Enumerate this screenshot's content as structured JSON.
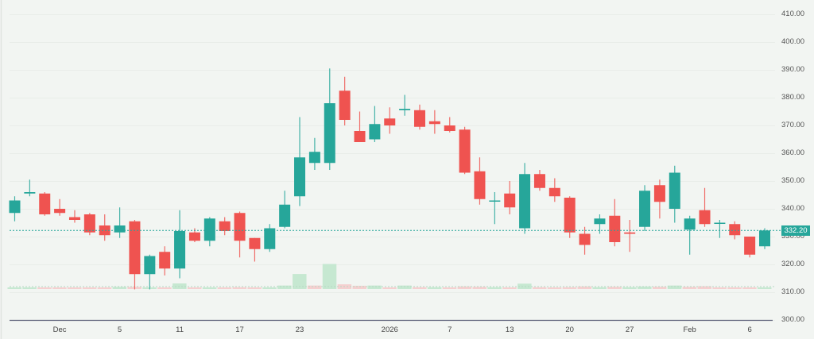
{
  "chart_data": {
    "type": "candlestick",
    "title": "",
    "xlabel": "",
    "ylabel": "",
    "ylim": [
      300,
      410
    ],
    "y_ticks": [
      410,
      400,
      390,
      380,
      370,
      360,
      350,
      340,
      330,
      320,
      310,
      300
    ],
    "x_ticks": [
      {
        "label": "Dec",
        "index": 3
      },
      {
        "label": "5",
        "index": 7
      },
      {
        "label": "11",
        "index": 11
      },
      {
        "label": "17",
        "index": 15
      },
      {
        "label": "23",
        "index": 19
      },
      {
        "label": "2026",
        "index": 25
      },
      {
        "label": "7",
        "index": 29
      },
      {
        "label": "13",
        "index": 33
      },
      {
        "label": "20",
        "index": 37
      },
      {
        "label": "27",
        "index": 41
      },
      {
        "label": "Feb",
        "index": 45
      },
      {
        "label": "6",
        "index": 49
      }
    ],
    "last_price": 332.2,
    "last_price_label": "332.20",
    "grid": true,
    "colors": {
      "up": "#26a69a",
      "down": "#ef5350",
      "vol_up": "#c6e8d1",
      "vol_down": "#f5d0d0",
      "background": "#f2f5f2"
    },
    "candles": [
      {
        "o": 338.5,
        "h": 344.5,
        "l": 335.5,
        "c": 343.0
      },
      {
        "o": 345.5,
        "h": 350.5,
        "l": 344.5,
        "c": 346.0
      },
      {
        "o": 345.5,
        "h": 346.0,
        "l": 337.5,
        "c": 338.0
      },
      {
        "o": 340.0,
        "h": 343.5,
        "l": 337.5,
        "c": 338.5
      },
      {
        "o": 337.0,
        "h": 339.5,
        "l": 335.0,
        "c": 336.0
      },
      {
        "o": 338.0,
        "h": 338.5,
        "l": 330.5,
        "c": 331.5
      },
      {
        "o": 334.0,
        "h": 338.0,
        "l": 328.5,
        "c": 330.5
      },
      {
        "o": 331.5,
        "h": 340.5,
        "l": 329.5,
        "c": 334.0
      },
      {
        "o": 335.5,
        "h": 336.0,
        "l": 311.0,
        "c": 316.5
      },
      {
        "o": 316.5,
        "h": 323.5,
        "l": 311.0,
        "c": 323.0
      },
      {
        "o": 324.5,
        "h": 326.5,
        "l": 316.0,
        "c": 318.5
      },
      {
        "o": 318.5,
        "h": 339.5,
        "l": 315.0,
        "c": 332.0
      },
      {
        "o": 331.5,
        "h": 333.0,
        "l": 328.0,
        "c": 328.5
      },
      {
        "o": 328.5,
        "h": 337.0,
        "l": 326.5,
        "c": 336.5
      },
      {
        "o": 335.5,
        "h": 337.0,
        "l": 330.5,
        "c": 332.0
      },
      {
        "o": 338.5,
        "h": 339.0,
        "l": 322.5,
        "c": 328.5
      },
      {
        "o": 329.5,
        "h": 329.5,
        "l": 321.0,
        "c": 325.5
      },
      {
        "o": 325.5,
        "h": 334.5,
        "l": 324.5,
        "c": 333.0
      },
      {
        "o": 333.5,
        "h": 346.5,
        "l": 333.0,
        "c": 341.5
      },
      {
        "o": 344.5,
        "h": 373.0,
        "l": 341.0,
        "c": 358.5
      },
      {
        "o": 356.5,
        "h": 365.5,
        "l": 354.0,
        "c": 360.5
      },
      {
        "o": 356.5,
        "h": 390.5,
        "l": 354.0,
        "c": 378.0
      },
      {
        "o": 382.5,
        "h": 387.5,
        "l": 370.0,
        "c": 372.0
      },
      {
        "o": 368.0,
        "h": 375.0,
        "l": 364.0,
        "c": 364.0
      },
      {
        "o": 365.0,
        "h": 377.0,
        "l": 364.0,
        "c": 370.5
      },
      {
        "o": 372.5,
        "h": 376.5,
        "l": 367.0,
        "c": 370.0
      },
      {
        "o": 375.5,
        "h": 381.0,
        "l": 373.5,
        "c": 376.0
      },
      {
        "o": 375.5,
        "h": 377.5,
        "l": 368.5,
        "c": 369.5
      },
      {
        "o": 371.5,
        "h": 375.5,
        "l": 367.0,
        "c": 370.5
      },
      {
        "o": 370.0,
        "h": 373.0,
        "l": 367.5,
        "c": 368.0
      },
      {
        "o": 368.5,
        "h": 369.5,
        "l": 352.5,
        "c": 353.0
      },
      {
        "o": 353.5,
        "h": 358.5,
        "l": 341.5,
        "c": 343.5
      },
      {
        "o": 343.0,
        "h": 346.0,
        "l": 334.5,
        "c": 343.0
      },
      {
        "o": 345.5,
        "h": 350.0,
        "l": 338.0,
        "c": 340.5
      },
      {
        "o": 333.0,
        "h": 356.5,
        "l": 331.0,
        "c": 352.5
      },
      {
        "o": 352.5,
        "h": 354.0,
        "l": 346.5,
        "c": 347.5
      },
      {
        "o": 347.5,
        "h": 351.0,
        "l": 342.5,
        "c": 344.5
      },
      {
        "o": 344.0,
        "h": 344.5,
        "l": 329.5,
        "c": 331.5
      },
      {
        "o": 331.0,
        "h": 333.5,
        "l": 323.5,
        "c": 327.0
      },
      {
        "o": 334.5,
        "h": 338.0,
        "l": 331.0,
        "c": 336.5
      },
      {
        "o": 337.5,
        "h": 343.5,
        "l": 326.5,
        "c": 328.0
      },
      {
        "o": 331.5,
        "h": 336.0,
        "l": 324.5,
        "c": 331.0
      },
      {
        "o": 333.5,
        "h": 348.5,
        "l": 332.0,
        "c": 346.5
      },
      {
        "o": 348.5,
        "h": 350.5,
        "l": 336.5,
        "c": 342.5
      },
      {
        "o": 340.0,
        "h": 355.5,
        "l": 335.0,
        "c": 353.0
      },
      {
        "o": 332.5,
        "h": 337.5,
        "l": 323.5,
        "c": 336.5
      },
      {
        "o": 339.5,
        "h": 347.5,
        "l": 333.5,
        "c": 334.5
      },
      {
        "o": 335.0,
        "h": 336.0,
        "l": 329.5,
        "c": 335.0
      },
      {
        "o": 334.5,
        "h": 335.5,
        "l": 329.0,
        "c": 330.5
      },
      {
        "o": 330.0,
        "h": 330.0,
        "l": 322.5,
        "c": 323.5
      },
      {
        "o": 326.5,
        "h": 333.0,
        "l": 325.5,
        "c": 332.2
      }
    ],
    "volume": [
      {
        "v": 1.3,
        "up": true
      },
      {
        "v": 1.3,
        "up": true
      },
      {
        "v": 1.1,
        "up": false
      },
      {
        "v": 1.1,
        "up": false
      },
      {
        "v": 0.9,
        "up": false
      },
      {
        "v": 0.9,
        "up": false
      },
      {
        "v": 1.1,
        "up": false
      },
      {
        "v": 1.9,
        "up": true
      },
      {
        "v": 1.9,
        "up": false
      },
      {
        "v": 1.3,
        "up": true
      },
      {
        "v": 1.1,
        "up": false
      },
      {
        "v": 5.0,
        "up": true
      },
      {
        "v": 1.1,
        "up": false
      },
      {
        "v": 1.3,
        "up": true
      },
      {
        "v": 1.1,
        "up": false
      },
      {
        "v": 1.6,
        "up": false
      },
      {
        "v": 1.1,
        "up": false
      },
      {
        "v": 1.3,
        "up": true
      },
      {
        "v": 3.1,
        "up": true
      },
      {
        "v": 13.5,
        "up": true
      },
      {
        "v": 3.1,
        "up": false
      },
      {
        "v": 22.5,
        "up": true
      },
      {
        "v": 4.2,
        "up": false
      },
      {
        "v": 2.9,
        "up": false
      },
      {
        "v": 3.1,
        "up": true
      },
      {
        "v": 1.4,
        "up": false
      },
      {
        "v": 3.1,
        "up": true
      },
      {
        "v": 1.6,
        "up": false
      },
      {
        "v": 1.6,
        "up": true
      },
      {
        "v": 1.2,
        "up": false
      },
      {
        "v": 2.3,
        "up": false
      },
      {
        "v": 1.9,
        "up": false
      },
      {
        "v": 1.6,
        "up": true
      },
      {
        "v": 1.2,
        "up": false
      },
      {
        "v": 4.8,
        "up": true
      },
      {
        "v": 1.6,
        "up": false
      },
      {
        "v": 1.2,
        "up": false
      },
      {
        "v": 1.6,
        "up": false
      },
      {
        "v": 2.3,
        "up": false
      },
      {
        "v": 1.6,
        "up": true
      },
      {
        "v": 2.0,
        "up": false
      },
      {
        "v": 1.6,
        "up": true
      },
      {
        "v": 2.2,
        "up": true
      },
      {
        "v": 2.0,
        "up": false
      },
      {
        "v": 3.1,
        "up": true
      },
      {
        "v": 1.9,
        "up": false
      },
      {
        "v": 2.5,
        "up": false
      },
      {
        "v": 1.3,
        "up": false
      },
      {
        "v": 0.9,
        "up": false
      },
      {
        "v": 1.2,
        "up": false
      },
      {
        "v": 1.2,
        "up": true
      }
    ]
  },
  "price_axis": {
    "labels": [
      "410.00",
      "400.00",
      "390.00",
      "380.00",
      "370.00",
      "360.00",
      "350.00",
      "340.00",
      "330.00",
      "320.00",
      "310.00",
      "300.00"
    ]
  },
  "time_axis": {
    "labels": [
      "Dec",
      "5",
      "11",
      "17",
      "23",
      "2026",
      "7",
      "13",
      "20",
      "27",
      "Feb",
      "6"
    ]
  },
  "last_price_tag": {
    "label": "332.20",
    "color": "#26a69a"
  }
}
